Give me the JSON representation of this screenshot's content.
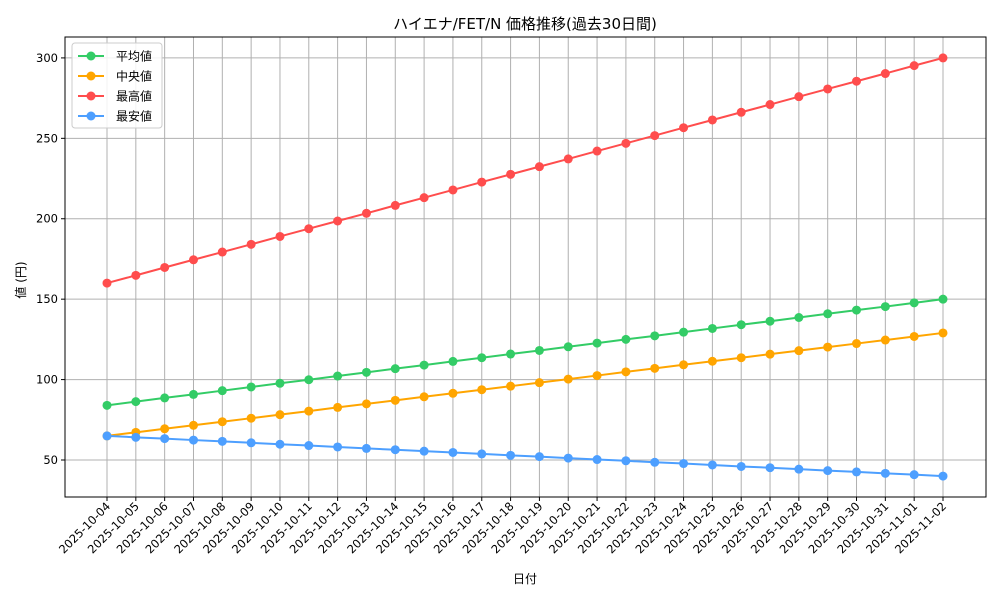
{
  "chart_data": {
    "type": "line",
    "title": "ハイエナ/FET/N 価格推移(過去30日間)",
    "xlabel": "日付",
    "ylabel": "値 (円)",
    "ylim": [
      27,
      313
    ],
    "yticks": [
      50,
      100,
      150,
      200,
      250,
      300
    ],
    "grid": true,
    "legend_position": "top-left",
    "x": [
      "2025-10-04",
      "2025-10-05",
      "2025-10-06",
      "2025-10-07",
      "2025-10-08",
      "2025-10-09",
      "2025-10-10",
      "2025-10-11",
      "2025-10-12",
      "2025-10-13",
      "2025-10-14",
      "2025-10-15",
      "2025-10-16",
      "2025-10-17",
      "2025-10-18",
      "2025-10-19",
      "2025-10-20",
      "2025-10-21",
      "2025-10-22",
      "2025-10-23",
      "2025-10-24",
      "2025-10-25",
      "2025-10-26",
      "2025-10-27",
      "2025-10-28",
      "2025-10-29",
      "2025-10-30",
      "2025-10-31",
      "2025-11-01",
      "2025-11-02"
    ],
    "series": [
      {
        "name": "平均値",
        "color": "#33cc66",
        "values": [
          84,
          86.3,
          88.6,
          90.8,
          93.1,
          95.4,
          97.7,
          99.9,
          102.2,
          104.5,
          106.8,
          109.0,
          111.3,
          113.6,
          115.9,
          118.1,
          120.4,
          122.7,
          125.0,
          127.2,
          129.5,
          131.8,
          134.1,
          136.3,
          138.6,
          140.9,
          143.2,
          145.4,
          147.7,
          150
        ]
      },
      {
        "name": "中央値",
        "color": "#ffa500",
        "values": [
          65,
          67.2,
          69.4,
          71.6,
          73.8,
          76.0,
          78.2,
          80.4,
          82.7,
          84.9,
          87.1,
          89.3,
          91.5,
          93.7,
          95.9,
          98.1,
          100.3,
          102.5,
          104.8,
          107.0,
          109.2,
          111.4,
          113.6,
          115.8,
          118.0,
          120.2,
          122.4,
          124.6,
          126.8,
          129
        ]
      },
      {
        "name": "最高値",
        "color": "#ff4d4d",
        "values": [
          160,
          164.8,
          169.7,
          174.5,
          179.3,
          184.1,
          189.0,
          193.8,
          198.6,
          203.4,
          208.3,
          213.1,
          217.9,
          222.8,
          227.6,
          232.4,
          237.2,
          242.1,
          246.9,
          251.7,
          256.6,
          261.4,
          266.2,
          271.0,
          275.9,
          280.7,
          285.5,
          290.3,
          295.2,
          300
        ]
      },
      {
        "name": "最安値",
        "color": "#4d9fff",
        "values": [
          65,
          64.1,
          63.3,
          62.4,
          61.6,
          60.7,
          59.8,
          59.0,
          58.1,
          57.2,
          56.4,
          55.5,
          54.7,
          53.8,
          52.9,
          52.1,
          51.2,
          50.3,
          49.5,
          48.6,
          47.8,
          46.9,
          46.0,
          45.2,
          44.3,
          43.4,
          42.6,
          41.7,
          40.9,
          40
        ]
      }
    ]
  }
}
